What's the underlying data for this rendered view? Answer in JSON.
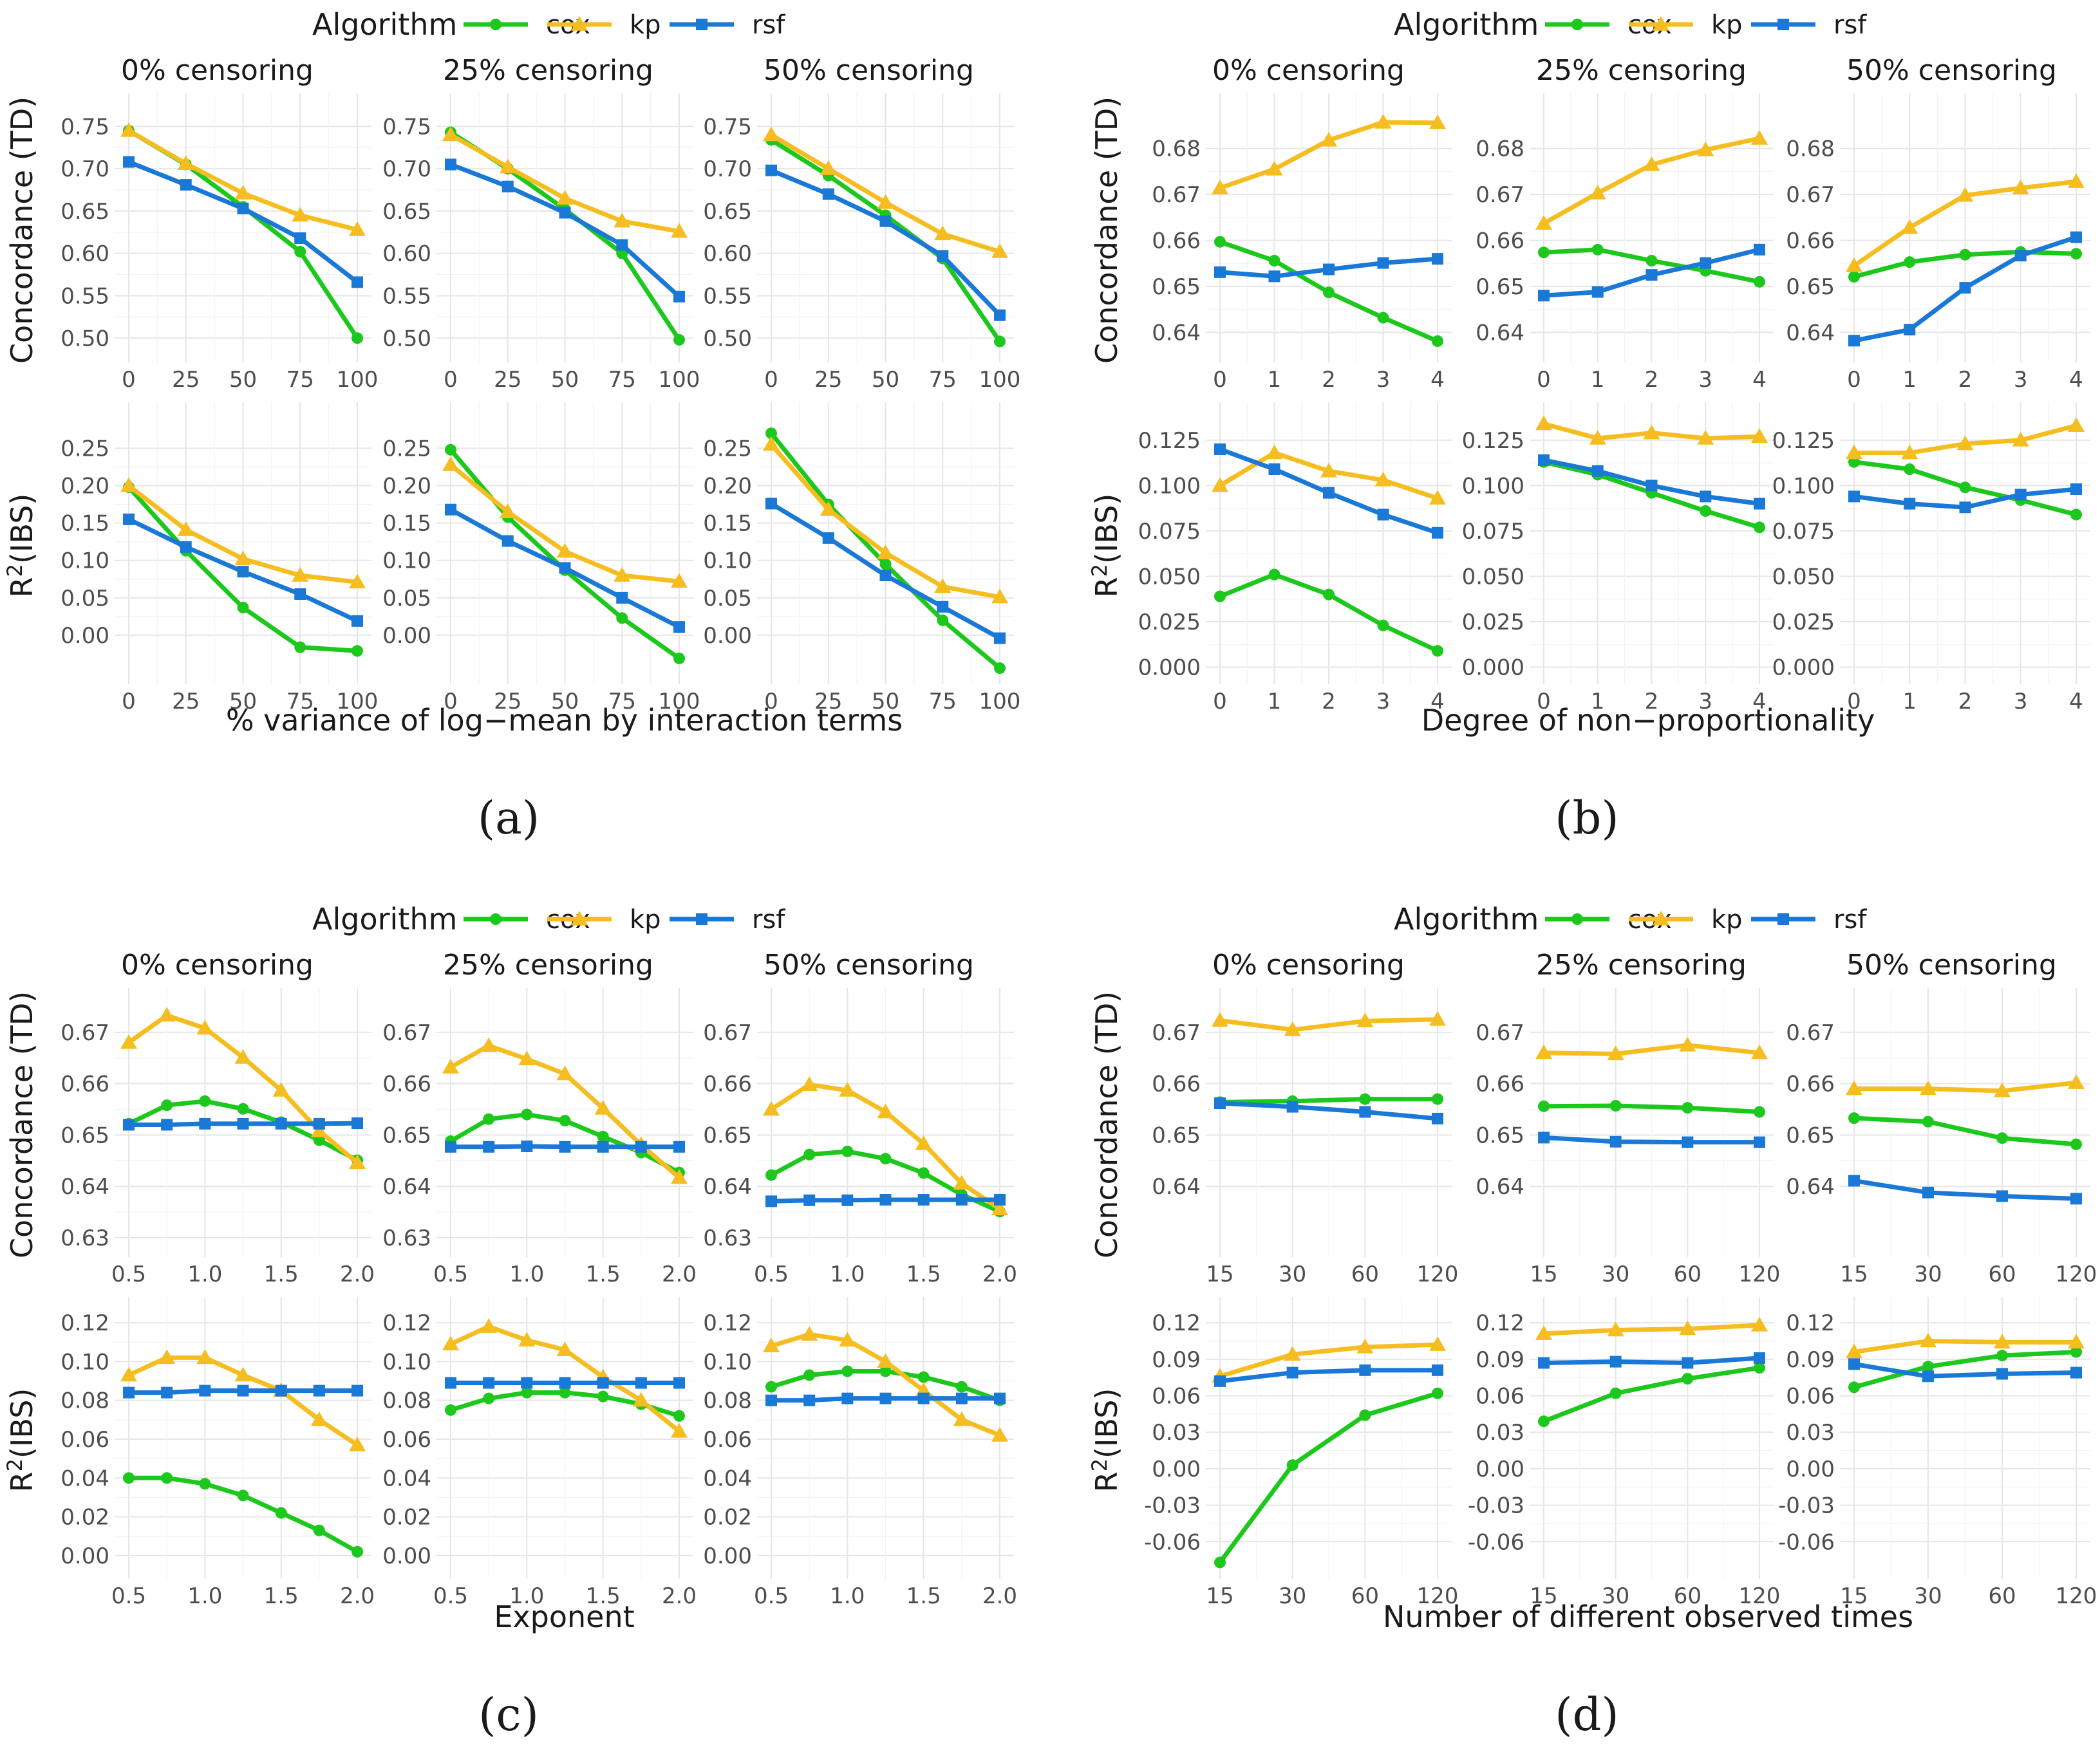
{
  "legend": {
    "title": "Algorithm",
    "labels": [
      "cox",
      "kp",
      "rsf"
    ]
  },
  "colors": {
    "cox": "#1dc81d",
    "kp": "#f5bd1f",
    "rsf": "#1a78d6"
  },
  "markers": {
    "cox": "circle",
    "kp": "triangle",
    "rsf": "square"
  },
  "strip_labels": [
    "0% censoring",
    "25% censoring",
    "50% censoring"
  ],
  "y_labels": {
    "concordance": "Concordance (TD)",
    "r2_base": "R",
    "r2_sup": "2",
    "r2_rest": "(IBS)"
  },
  "chart_data": [
    {
      "panel": "(a)",
      "type": "line",
      "xlabel": "% variance of log−mean by interaction terms",
      "x": [
        0,
        25,
        50,
        75,
        100
      ],
      "xticks": [
        "0",
        "25",
        "50",
        "75",
        "100"
      ],
      "xlim": [
        0,
        100
      ],
      "rows": [
        {
          "metric": "concordance",
          "ylim": [
            0.485,
            0.77
          ],
          "yticks": [
            0.5,
            0.55,
            0.6,
            0.65,
            0.7,
            0.75
          ],
          "tick_labels": [
            "0.50",
            "0.55",
            "0.60",
            "0.65",
            "0.70",
            "0.75"
          ],
          "facets": [
            {
              "cox": [
                0.745,
                0.705,
                0.655,
                0.602,
                0.5
              ],
              "kp": [
                0.745,
                0.706,
                0.671,
                0.645,
                0.628
              ],
              "rsf": [
                0.708,
                0.681,
                0.653,
                0.618,
                0.566
              ]
            },
            {
              "cox": [
                0.743,
                0.7,
                0.652,
                0.6,
                0.498
              ],
              "kp": [
                0.74,
                0.702,
                0.665,
                0.638,
                0.626
              ],
              "rsf": [
                0.705,
                0.679,
                0.648,
                0.61,
                0.549
              ]
            },
            {
              "cox": [
                0.734,
                0.692,
                0.645,
                0.594,
                0.496
              ],
              "kp": [
                0.74,
                0.7,
                0.66,
                0.623,
                0.602
              ],
              "rsf": [
                0.698,
                0.67,
                0.638,
                0.597,
                0.527
              ]
            }
          ]
        },
        {
          "metric": "r2",
          "ylim": [
            -0.05,
            0.29
          ],
          "yticks": [
            0,
            0.05,
            0.1,
            0.15,
            0.2,
            0.25
          ],
          "tick_labels": [
            "0.00",
            "0.05",
            "0.10",
            "0.15",
            "0.20",
            "0.25"
          ],
          "facets": [
            {
              "cox": [
                0.198,
                0.113,
                0.037,
                -0.016,
                -0.021
              ],
              "kp": [
                0.2,
                0.141,
                0.102,
                0.08,
                0.071
              ],
              "rsf": [
                0.155,
                0.118,
                0.085,
                0.055,
                0.019
              ]
            },
            {
              "cox": [
                0.248,
                0.158,
                0.087,
                0.023,
                -0.031
              ],
              "kp": [
                0.228,
                0.165,
                0.112,
                0.08,
                0.072
              ],
              "rsf": [
                0.168,
                0.126,
                0.09,
                0.05,
                0.011
              ]
            },
            {
              "cox": [
                0.27,
                0.175,
                0.095,
                0.02,
                -0.044
              ],
              "kp": [
                0.255,
                0.168,
                0.11,
                0.065,
                0.051
              ],
              "rsf": [
                0.176,
                0.13,
                0.08,
                0.038,
                -0.004
              ]
            }
          ]
        }
      ]
    },
    {
      "panel": "(b)",
      "type": "line",
      "xlabel": "Degree of non−proportionality",
      "x": [
        0,
        1,
        2,
        3,
        4
      ],
      "xticks": [
        "0",
        "1",
        "2",
        "3",
        "4"
      ],
      "xlim": [
        0,
        4
      ],
      "rows": [
        {
          "metric": "concordance",
          "ylim": [
            0.636,
            0.6885
          ],
          "yticks": [
            0.64,
            0.65,
            0.66,
            0.67,
            0.68
          ],
          "tick_labels": [
            "0.64",
            "0.65",
            "0.66",
            "0.67",
            "0.68"
          ],
          "facets": [
            {
              "cox": [
                0.6597,
                0.6556,
                0.6487,
                0.6432,
                0.6381
              ],
              "kp": [
                0.6714,
                0.6755,
                0.6818,
                0.6857,
                0.6856
              ],
              "rsf": [
                0.6531,
                0.6522,
                0.6537,
                0.6551,
                0.656
              ]
            },
            {
              "cox": [
                0.6574,
                0.658,
                0.6556,
                0.6534,
                0.651
              ],
              "kp": [
                0.6637,
                0.6703,
                0.6765,
                0.6797,
                0.6822
              ],
              "rsf": [
                0.648,
                0.6488,
                0.6525,
                0.6551,
                0.658
              ]
            },
            {
              "cox": [
                0.6521,
                0.6553,
                0.6569,
                0.6575,
                0.6571
              ],
              "kp": [
                0.6545,
                0.6628,
                0.6698,
                0.6714,
                0.6728
              ],
              "rsf": [
                0.6382,
                0.6406,
                0.6497,
                0.6567,
                0.6607
              ]
            }
          ]
        },
        {
          "metric": "r2",
          "ylim": [
            -0.003,
            0.137
          ],
          "yticks": [
            0,
            0.025,
            0.05,
            0.075,
            0.1,
            0.125
          ],
          "tick_labels": [
            "0.000",
            "0.025",
            "0.050",
            "0.075",
            "0.100",
            "0.125"
          ],
          "facets": [
            {
              "cox": [
                0.039,
                0.051,
                0.04,
                0.023,
                0.009
              ],
              "kp": [
                0.1,
                0.118,
                0.108,
                0.103,
                0.093
              ],
              "rsf": [
                0.12,
                0.109,
                0.096,
                0.084,
                0.074
              ]
            },
            {
              "cox": [
                0.113,
                0.106,
                0.096,
                0.086,
                0.077
              ],
              "kp": [
                0.134,
                0.126,
                0.129,
                0.126,
                0.127
              ],
              "rsf": [
                0.114,
                0.108,
                0.1,
                0.094,
                0.09
              ]
            },
            {
              "cox": [
                0.113,
                0.109,
                0.099,
                0.092,
                0.084
              ],
              "kp": [
                0.118,
                0.118,
                0.123,
                0.125,
                0.133
              ],
              "rsf": [
                0.094,
                0.09,
                0.088,
                0.095,
                0.098
              ]
            }
          ]
        }
      ]
    },
    {
      "panel": "(c)",
      "type": "line",
      "xlabel": "Exponent",
      "x": [
        0.5,
        0.75,
        1.0,
        1.25,
        1.5,
        1.75,
        2.0
      ],
      "xticks": [
        "0.5",
        "1.0",
        "1.5",
        "2.0"
      ],
      "xtick_values": [
        0.5,
        1.0,
        1.5,
        2.0
      ],
      "xlim": [
        0.5,
        2.0
      ],
      "rows": [
        {
          "metric": "concordance",
          "ylim": [
            0.6285,
            0.6755
          ],
          "yticks": [
            0.63,
            0.64,
            0.65,
            0.66,
            0.67
          ],
          "tick_labels": [
            "0.63",
            "0.64",
            "0.65",
            "0.66",
            "0.67"
          ],
          "facets": [
            {
              "cox": [
                0.6522,
                0.6558,
                0.6566,
                0.6551,
                0.6525,
                0.649,
                0.6451
              ],
              "kp": [
                0.668,
                0.6733,
                0.6708,
                0.6651,
                0.6587,
                0.6508,
                0.6446
              ],
              "rsf": [
                0.652,
                0.652,
                0.6522,
                0.6522,
                0.6522,
                0.6522,
                0.6523
              ]
            },
            {
              "cox": [
                0.6488,
                0.6531,
                0.654,
                0.6528,
                0.6497,
                0.6466,
                0.6427
              ],
              "kp": [
                0.6632,
                0.6674,
                0.6648,
                0.6619,
                0.6552,
                0.6481,
                0.6417
              ],
              "rsf": [
                0.6477,
                0.6477,
                0.6478,
                0.6477,
                0.6477,
                0.6477,
                0.6477
              ]
            },
            {
              "cox": [
                0.6422,
                0.6462,
                0.6468,
                0.6454,
                0.6426,
                0.6384,
                0.6351
              ],
              "kp": [
                0.655,
                0.6598,
                0.6587,
                0.6545,
                0.6483,
                0.6406,
                0.6356
              ],
              "rsf": [
                0.6371,
                0.6373,
                0.6373,
                0.6374,
                0.6374,
                0.6374,
                0.6374
              ]
            }
          ]
        },
        {
          "metric": "r2",
          "ylim": [
            -0.006,
            0.125
          ],
          "yticks": [
            0,
            0.02,
            0.04,
            0.06,
            0.08,
            0.1,
            0.12
          ],
          "tick_labels": [
            "0.00",
            "0.02",
            "0.04",
            "0.06",
            "0.08",
            "0.10",
            "0.12"
          ],
          "facets": [
            {
              "cox": [
                0.04,
                0.04,
                0.037,
                0.031,
                0.022,
                0.013,
                0.002
              ],
              "kp": [
                0.093,
                0.102,
                0.102,
                0.093,
                0.085,
                0.07,
                0.057
              ],
              "rsf": [
                0.084,
                0.084,
                0.085,
                0.085,
                0.085,
                0.085,
                0.085
              ]
            },
            {
              "cox": [
                0.075,
                0.081,
                0.084,
                0.084,
                0.082,
                0.078,
                0.072
              ],
              "kp": [
                0.109,
                0.118,
                0.111,
                0.106,
                0.092,
                0.08,
                0.064
              ],
              "rsf": [
                0.089,
                0.089,
                0.089,
                0.089,
                0.089,
                0.089,
                0.089
              ]
            },
            {
              "cox": [
                0.087,
                0.093,
                0.095,
                0.095,
                0.092,
                0.087,
                0.08
              ],
              "kp": [
                0.108,
                0.114,
                0.111,
                0.1,
                0.085,
                0.07,
                0.062
              ],
              "rsf": [
                0.08,
                0.08,
                0.081,
                0.081,
                0.081,
                0.081,
                0.081
              ]
            }
          ]
        }
      ]
    },
    {
      "panel": "(d)",
      "type": "line",
      "xlabel": "Number of different observed times",
      "x": [
        15,
        30,
        60,
        120
      ],
      "x_scale": "log2",
      "xticks": [
        "15",
        "30",
        "60",
        "120"
      ],
      "xlim": [
        15,
        120
      ],
      "rows": [
        {
          "metric": "concordance",
          "ylim": [
            0.6285,
            0.6755
          ],
          "yticks": [
            0.64,
            0.65,
            0.66,
            0.67
          ],
          "tick_labels": [
            "0.64",
            "0.65",
            "0.66",
            "0.67"
          ],
          "facets": [
            {
              "cox": [
                0.6564,
                0.6566,
                0.657,
                0.657
              ],
              "kp": [
                0.6723,
                0.6705,
                0.6722,
                0.6725
              ],
              "rsf": [
                0.6562,
                0.6555,
                0.6545,
                0.6532
              ]
            },
            {
              "cox": [
                0.6556,
                0.6557,
                0.6553,
                0.6545
              ],
              "kp": [
                0.666,
                0.6658,
                0.6675,
                0.666
              ],
              "rsf": [
                0.6495,
                0.6487,
                0.6486,
                0.6486
              ]
            },
            {
              "cox": [
                0.6533,
                0.6526,
                0.6494,
                0.6482
              ],
              "kp": [
                0.659,
                0.659,
                0.6586,
                0.6602
              ],
              "rsf": [
                0.6411,
                0.6388,
                0.6381,
                0.6376
              ]
            }
          ]
        },
        {
          "metric": "r2",
          "ylim": [
            -0.081,
            0.128
          ],
          "yticks": [
            -0.06,
            -0.03,
            0,
            0.03,
            0.06,
            0.09,
            0.12
          ],
          "tick_labels": [
            "-0.06",
            "-0.03",
            "0.00",
            "0.03",
            "0.06",
            "0.09",
            "0.12"
          ],
          "facets": [
            {
              "cox": [
                -0.077,
                0.003,
                0.044,
                0.062
              ],
              "kp": [
                0.076,
                0.094,
                0.1,
                0.102
              ],
              "rsf": [
                0.072,
                0.079,
                0.081,
                0.081
              ]
            },
            {
              "cox": [
                0.039,
                0.062,
                0.074,
                0.083
              ],
              "kp": [
                0.111,
                0.114,
                0.115,
                0.118
              ],
              "rsf": [
                0.087,
                0.088,
                0.087,
                0.091
              ]
            },
            {
              "cox": [
                0.067,
                0.084,
                0.093,
                0.096
              ],
              "kp": [
                0.096,
                0.105,
                0.104,
                0.104
              ],
              "rsf": [
                0.086,
                0.076,
                0.078,
                0.079
              ]
            }
          ]
        }
      ]
    }
  ]
}
